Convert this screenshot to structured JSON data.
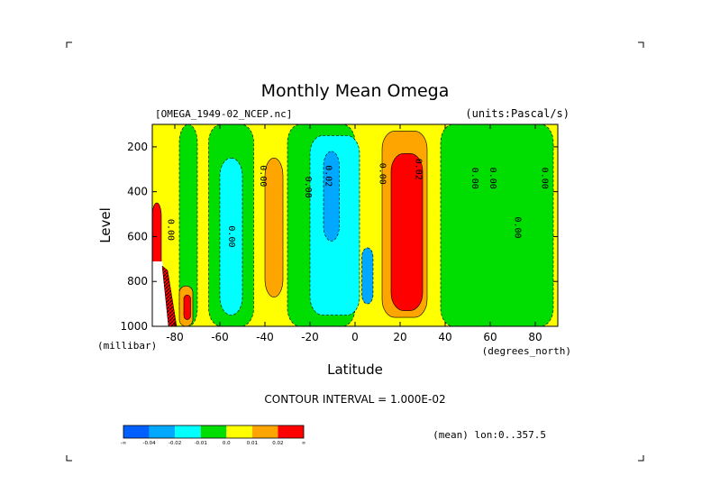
{
  "chart_data": {
    "type": "heatmap",
    "title": "Monthly Mean Omega",
    "subtitle_left": "[OMEGA_1949-02_NCEP.nc]",
    "subtitle_right": "(units:Pascal/s)",
    "xlabel": "Latitude",
    "ylabel": "Level",
    "x_units": "(degrees_north)",
    "y_units": "(millibar)",
    "x_ticks": [
      -80,
      -60,
      -40,
      -20,
      0,
      20,
      40,
      60,
      80
    ],
    "y_ticks": [
      200,
      400,
      600,
      800,
      1000
    ],
    "xlim": [
      -90,
      90
    ],
    "ylim": [
      1000,
      100
    ],
    "contour_interval_text": "CONTOUR INTERVAL = 1.000E-02",
    "mean_text": "(mean) lon:0..357.5",
    "colorbar": {
      "labels": [
        "-∞",
        "-0.04",
        "-0.02",
        "-0.01",
        "0.0",
        "0.01",
        "0.02",
        "∞"
      ],
      "colors": [
        "#0060ff",
        "#00a8ff",
        "#00ffff",
        "#00dd00",
        "#ffff00",
        "#ffa500",
        "#ff0000"
      ]
    },
    "regions": [
      {
        "level": "positive_low",
        "color": "#ffff00",
        "lat": [
          -90,
          90
        ],
        "p": [
          100,
          1000
        ]
      },
      {
        "level": "negative_low",
        "color": "#00dd00",
        "lat": [
          -78,
          -70
        ],
        "p": [
          100,
          1000
        ]
      },
      {
        "level": "negative_low",
        "color": "#00dd00",
        "lat": [
          -65,
          -45
        ],
        "p": [
          100,
          1000
        ]
      },
      {
        "level": "negative_mid",
        "color": "#00ffff",
        "lat": [
          -60,
          -50
        ],
        "p": [
          250,
          950
        ]
      },
      {
        "level": "positive_mid",
        "color": "#ffa500",
        "lat": [
          -40,
          -32
        ],
        "p": [
          250,
          870
        ]
      },
      {
        "level": "negative_low",
        "color": "#00dd00",
        "lat": [
          -30,
          0
        ],
        "p": [
          100,
          1000
        ]
      },
      {
        "level": "negative_mid",
        "color": "#00ffff",
        "lat": [
          -20,
          2
        ],
        "p": [
          150,
          950
        ]
      },
      {
        "level": "negative_high",
        "color": "#00a8ff",
        "lat": [
          -14,
          -7
        ],
        "p": [
          220,
          620
        ]
      },
      {
        "level": "negative_high",
        "color": "#00a8ff",
        "lat": [
          3,
          8
        ],
        "p": [
          650,
          900
        ]
      },
      {
        "level": "positive_mid",
        "color": "#ffa500",
        "lat": [
          12,
          32
        ],
        "p": [
          130,
          960
        ]
      },
      {
        "level": "positive_high",
        "color": "#ff0000",
        "lat": [
          16,
          30
        ],
        "p": [
          230,
          930
        ]
      },
      {
        "level": "negative_low",
        "color": "#00dd00",
        "lat": [
          38,
          88
        ],
        "p": [
          100,
          1000
        ]
      },
      {
        "level": "positive_mid",
        "color": "#ffa500",
        "lat": [
          -78,
          -72
        ],
        "p": [
          820,
          1000
        ]
      },
      {
        "level": "positive_high",
        "color": "#ff0000",
        "lat": [
          -76,
          -73
        ],
        "p": [
          860,
          970
        ]
      },
      {
        "level": "positive_high",
        "color": "#ff0000",
        "lat": [
          -90,
          -86
        ],
        "p": [
          450,
          800
        ]
      }
    ],
    "contour_labels": [
      {
        "text": "0.00",
        "lat": -83,
        "p": 570
      },
      {
        "text": "0.00",
        "lat": -56,
        "p": 600
      },
      {
        "text": "0.00",
        "lat": -42,
        "p": 330
      },
      {
        "text": "0.00",
        "lat": -22,
        "p": 380
      },
      {
        "text": "0.02",
        "lat": -13,
        "p": 330
      },
      {
        "text": "0.00",
        "lat": 11,
        "p": 320
      },
      {
        "text": "0.02",
        "lat": 27,
        "p": 300
      },
      {
        "text": "0.00",
        "lat": 52,
        "p": 340
      },
      {
        "text": "0.00",
        "lat": 60,
        "p": 340
      },
      {
        "text": "0.00",
        "lat": 71,
        "p": 560
      },
      {
        "text": "0.00",
        "lat": 83,
        "p": 340
      }
    ]
  }
}
